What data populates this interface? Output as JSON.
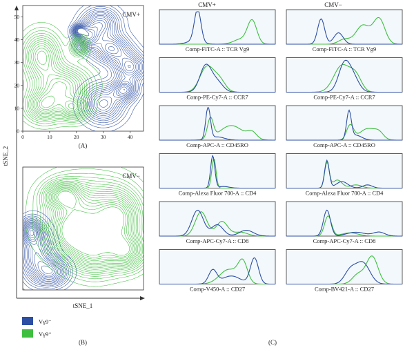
{
  "colors": {
    "vg9_neg": "#2c4ea3",
    "vg9_pos": "#3fbf3f",
    "panel_bg": "#f2f8fc"
  },
  "tsne": {
    "panel_a_label": "(A)",
    "panel_b_label": "(B)",
    "x_axis_title": "tSNE_1",
    "y_axis_title": "tSNE_2",
    "top_plot": {
      "group": "CMV+",
      "x_ticks": [
        "0",
        "10",
        "20",
        "30",
        "40"
      ],
      "y_ticks": [
        "0",
        "10",
        "20",
        "30",
        "40",
        "50"
      ]
    },
    "bottom_plot": {
      "group": "CMV−"
    }
  },
  "legend": {
    "items": [
      {
        "label": "Vγ9⁻",
        "color": "#2c4ea3"
      },
      {
        "label": "Vγ9⁺",
        "color": "#3fbf3f"
      }
    ]
  },
  "histograms": {
    "panel_label": "(C)",
    "columns": [
      "CMV+",
      "CMV−"
    ],
    "rows": [
      {
        "cmv_pos_label": "Comp-FITC-A :: TCR Vg9",
        "cmv_neg_label": "Comp-FITC-A :: TCR Vg9"
      },
      {
        "cmv_pos_label": "Comp-PE-Cy7-A :: CCR7",
        "cmv_neg_label": "Comp-PE-Cy7-A :: CCR7"
      },
      {
        "cmv_pos_label": "Comp-APC-A :: CD45RO",
        "cmv_neg_label": "Comp-APC-A :: CD45RO"
      },
      {
        "cmv_pos_label": "Comp-Alexa Fluor 700-A :: CD4",
        "cmv_neg_label": "Comp-Alexa Fluor 700-A :: CD4"
      },
      {
        "cmv_pos_label": "Comp-APC-Cy7-A :: CD8",
        "cmv_neg_label": "Comp-APC-Cy7-A :: CD8"
      },
      {
        "cmv_pos_label": "Comp-V450-A :: CD27",
        "cmv_neg_label": "Comp-BV421-A :: CD27"
      }
    ]
  },
  "chart_data": [
    {
      "type": "scatter",
      "group": "CMV+",
      "xlabel": "tSNE_1",
      "ylabel": "tSNE_2",
      "xlim": [
        0,
        45
      ],
      "ylim": [
        0,
        55
      ],
      "series": [
        {
          "name": "Vγ9⁻",
          "clusters": [
            {
              "x": 29,
              "y": 47,
              "sx": 4.5,
              "sy": 4.5
            },
            {
              "x": 24,
              "y": 41,
              "sx": 2.8,
              "sy": 3.5
            },
            {
              "x": 33,
              "y": 36,
              "sx": 4.5,
              "sy": 4.0
            },
            {
              "x": 40,
              "y": 28,
              "sx": 3.8,
              "sy": 4.2
            },
            {
              "x": 30,
              "y": 12,
              "sx": 5.0,
              "sy": 5.5
            },
            {
              "x": 21,
              "y": 44,
              "sx": 1.6,
              "sy": 1.6
            },
            {
              "x": 38,
              "y": 18,
              "sx": 3.0,
              "sy": 3.0
            }
          ]
        },
        {
          "name": "Vγ9⁺",
          "clusters": [
            {
              "x": 7,
              "y": 33,
              "sx": 4.5,
              "sy": 6.5
            },
            {
              "x": 15,
              "y": 20,
              "sx": 6.5,
              "sy": 5.5
            },
            {
              "x": 8,
              "y": 11,
              "sx": 4.5,
              "sy": 4.5
            },
            {
              "x": 21,
              "y": 37,
              "sx": 2.0,
              "sy": 2.5
            },
            {
              "x": 19,
              "y": 10,
              "sx": 3.5,
              "sy": 3.5
            }
          ]
        }
      ]
    },
    {
      "type": "scatter",
      "group": "CMV−",
      "xlabel": "tSNE_1",
      "ylabel": "tSNE_2",
      "series": [
        {
          "name": "Vγ9⁻",
          "clusters": [
            {
              "x": 5,
              "y": 14,
              "sx": 4.0,
              "sy": 7.0
            },
            {
              "x": 11,
              "y": 7,
              "sx": 4.0,
              "sy": 3.5
            },
            {
              "x": 3,
              "y": 23,
              "sx": 2.5,
              "sy": 3.0
            }
          ]
        },
        {
          "name": "Vγ9⁺",
          "clusters": [
            {
              "x": 24,
              "y": 30,
              "sx": 10,
              "sy": 9
            },
            {
              "x": 36,
              "y": 28,
              "sx": 5.5,
              "sy": 7
            },
            {
              "x": 18,
              "y": 22,
              "sx": 6,
              "sy": 6
            },
            {
              "x": 27,
              "y": 14,
              "sx": 6.5,
              "sy": 5.5
            },
            {
              "x": 39,
              "y": 15,
              "sx": 4.5,
              "sy": 4.5
            },
            {
              "x": 15,
              "y": 37,
              "sx": 4.5,
              "sy": 3.5
            }
          ]
        }
      ]
    },
    {
      "type": "area",
      "description_group": "histograms",
      "columns": [
        "CMV+",
        "CMV−"
      ],
      "xlim": [
        0,
        1
      ],
      "ylim": [
        0,
        1
      ],
      "series_names": [
        "Vγ9⁻",
        "Vγ9⁺"
      ],
      "rows": [
        {
          "cmv_pos": {
            "vg9_neg": [
              [
                0.33,
                1.0,
                0.028
              ],
              [
                0.3,
                0.1,
                0.06
              ]
            ],
            "vg9_pos": [
              [
                0.8,
                0.72,
                0.04
              ],
              [
                0.7,
                0.15,
                0.06
              ]
            ]
          },
          "cmv_neg": {
            "vg9_neg": [
              [
                0.3,
                0.78,
                0.03
              ],
              [
                0.45,
                0.35,
                0.04
              ]
            ],
            "vg9_pos": [
              [
                0.66,
                0.58,
                0.06
              ],
              [
                0.8,
                0.78,
                0.05
              ],
              [
                0.5,
                0.15,
                0.05
              ]
            ]
          }
        },
        {
          "cmv_pos": {
            "vg9_neg": [
              [
                0.4,
                0.82,
                0.05
              ],
              [
                0.5,
                0.3,
                0.05
              ]
            ],
            "vg9_pos": [
              [
                0.41,
                0.78,
                0.06
              ],
              [
                0.52,
                0.35,
                0.05
              ]
            ]
          },
          "cmv_neg": {
            "vg9_neg": [
              [
                0.5,
                0.85,
                0.05
              ],
              [
                0.58,
                0.4,
                0.05
              ]
            ],
            "vg9_pos": [
              [
                0.48,
                0.82,
                0.07
              ],
              [
                0.6,
                0.45,
                0.05
              ]
            ]
          }
        },
        {
          "cmv_pos": {
            "vg9_neg": [
              [
                0.42,
                1.0,
                0.02
              ],
              [
                0.5,
                0.1,
                0.06
              ]
            ],
            "vg9_pos": [
              [
                0.44,
                0.62,
                0.025
              ],
              [
                0.62,
                0.45,
                0.1
              ],
              [
                0.8,
                0.2,
                0.04
              ]
            ]
          },
          "cmv_neg": {
            "vg9_neg": [
              [
                0.54,
                0.85,
                0.02
              ],
              [
                0.6,
                0.15,
                0.05
              ]
            ],
            "vg9_pos": [
              [
                0.55,
                0.45,
                0.03
              ],
              [
                0.7,
                0.35,
                0.07
              ],
              [
                0.8,
                0.18,
                0.04
              ]
            ]
          }
        },
        {
          "cmv_pos": {
            "vg9_neg": [
              [
                0.46,
                1.0,
                0.018
              ],
              [
                0.55,
                0.05,
                0.05
              ]
            ],
            "vg9_pos": [
              [
                0.47,
                0.92,
                0.018
              ]
            ]
          },
          "cmv_neg": {
            "vg9_neg": [
              [
                0.35,
                0.85,
                0.02
              ],
              [
                0.48,
                0.2,
                0.05
              ],
              [
                0.7,
                0.1,
                0.04
              ]
            ],
            "vg9_pos": [
              [
                0.35,
                0.78,
                0.02
              ],
              [
                0.44,
                0.25,
                0.04
              ],
              [
                0.6,
                0.1,
                0.05
              ]
            ]
          }
        },
        {
          "cmv_pos": {
            "vg9_neg": [
              [
                0.33,
                0.8,
                0.05
              ],
              [
                0.5,
                0.35,
                0.05
              ],
              [
                0.75,
                0.18,
                0.06
              ]
            ],
            "vg9_pos": [
              [
                0.36,
                0.75,
                0.05
              ],
              [
                0.54,
                0.45,
                0.05
              ],
              [
                0.7,
                0.12,
                0.06
              ]
            ]
          },
          "cmv_neg": {
            "vg9_neg": [
              [
                0.35,
                0.8,
                0.03
              ],
              [
                0.6,
                0.12,
                0.08
              ],
              [
                0.8,
                0.12,
                0.05
              ]
            ],
            "vg9_pos": [
              [
                0.36,
                0.62,
                0.03
              ],
              [
                0.55,
                0.1,
                0.07
              ]
            ]
          }
        },
        {
          "cmv_pos": {
            "vg9_neg": [
              [
                0.46,
                0.42,
                0.035
              ],
              [
                0.82,
                0.8,
                0.035
              ],
              [
                0.62,
                0.25,
                0.08
              ]
            ],
            "vg9_pos": [
              [
                0.6,
                0.45,
                0.08
              ],
              [
                0.72,
                0.62,
                0.04
              ]
            ]
          },
          "cmv_neg": {
            "vg9_neg": [
              [
                0.66,
                0.65,
                0.06
              ],
              [
                0.55,
                0.4,
                0.05
              ]
            ],
            "vg9_pos": [
              [
                0.74,
                0.85,
                0.05
              ],
              [
                0.62,
                0.3,
                0.05
              ]
            ]
          }
        }
      ]
    }
  ]
}
